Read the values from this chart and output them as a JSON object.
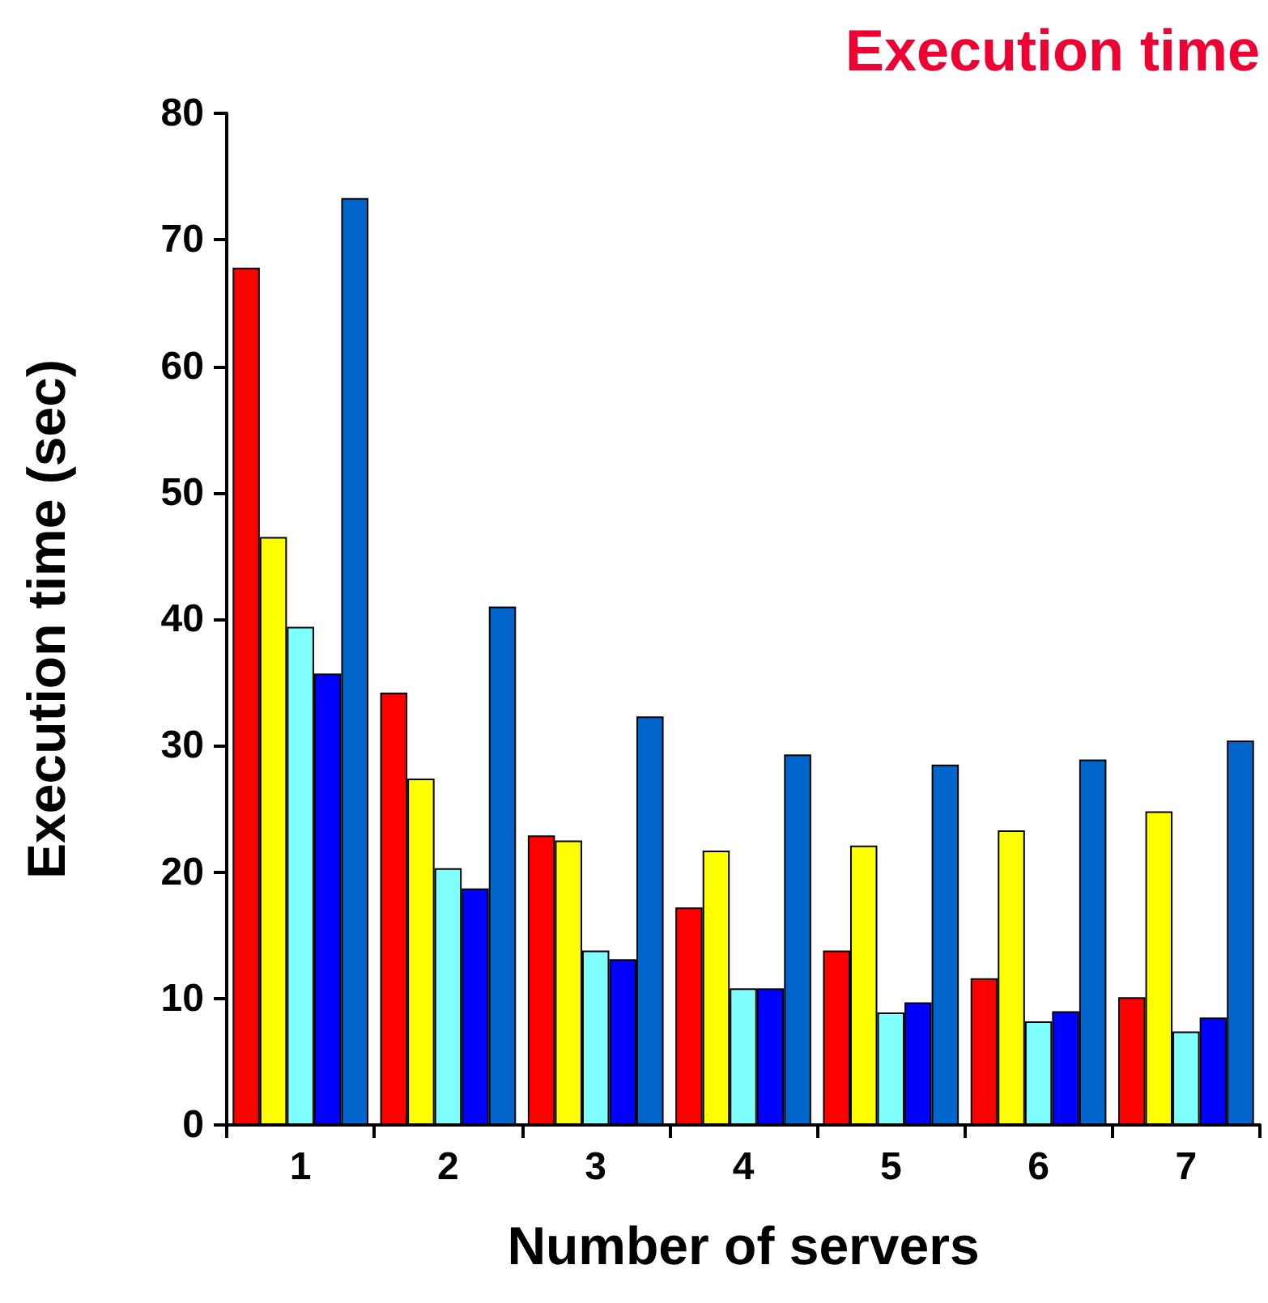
{
  "chart_data": {
    "type": "bar",
    "title": "Execution time",
    "xlabel": "Number of servers",
    "ylabel": "Execution time (sec)",
    "categories": [
      "1",
      "2",
      "3",
      "4",
      "5",
      "6",
      "7"
    ],
    "series": [
      {
        "color": "#ff0000",
        "values": [
          67.8,
          34.2,
          22.9,
          17.2,
          13.8,
          11.6,
          10.1
        ]
      },
      {
        "color": "#ffff00",
        "values": [
          46.5,
          27.4,
          22.5,
          21.7,
          22.1,
          23.3,
          24.8
        ]
      },
      {
        "color": "#80ffff",
        "values": [
          39.4,
          20.3,
          13.8,
          10.8,
          8.9,
          8.2,
          7.4
        ]
      },
      {
        "color": "#0000ff",
        "values": [
          35.7,
          18.7,
          13.1,
          10.8,
          9.7,
          9.0,
          8.5
        ]
      },
      {
        "color": "#0066cc",
        "values": [
          73.3,
          41.0,
          32.3,
          29.3,
          28.5,
          28.9,
          30.4
        ]
      }
    ],
    "ylim": [
      0,
      80
    ],
    "yticks": [
      0,
      10,
      20,
      30,
      40,
      50,
      60,
      70,
      80
    ]
  }
}
